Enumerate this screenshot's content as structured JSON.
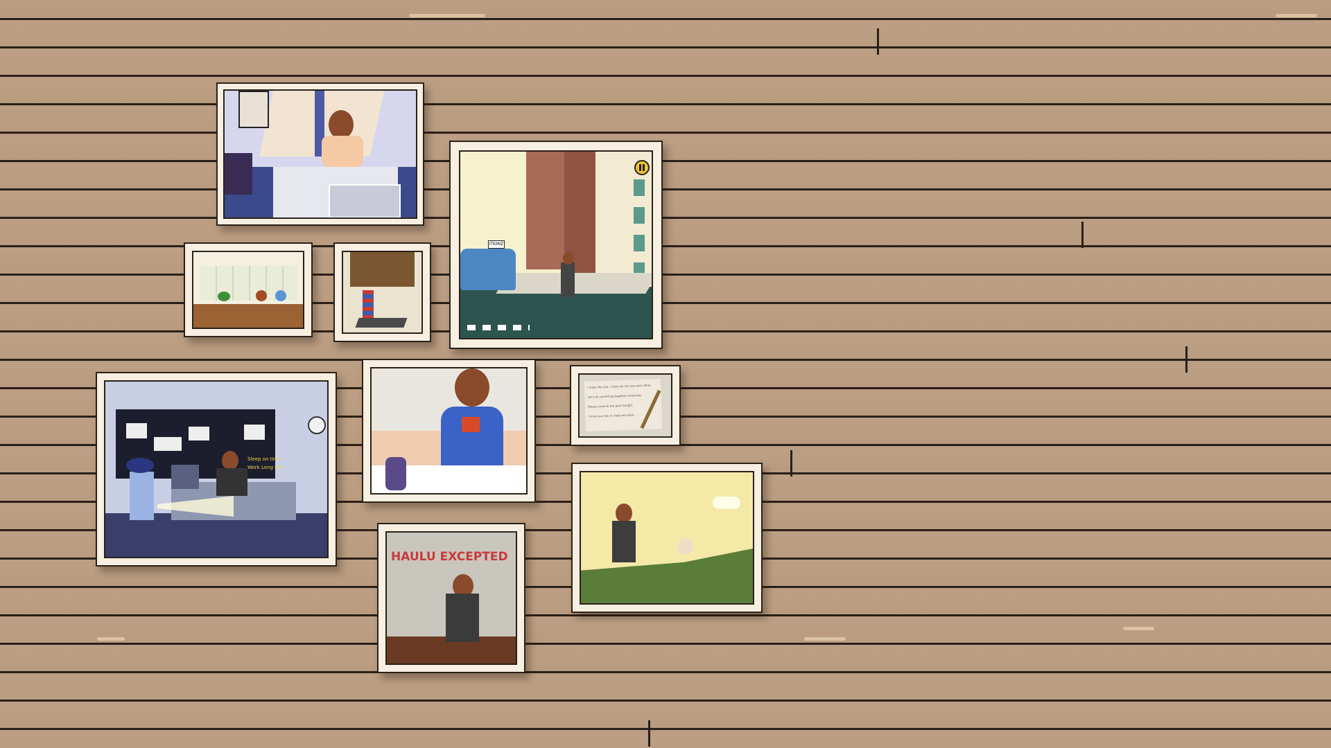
{
  "scene": "memory-wall",
  "frames": {
    "office": {
      "board_line1": "Sleep on time",
      "board_line2": "Work Long Life"
    },
    "graffiti": {
      "wall_text": "HAULU EXCEPTED"
    },
    "taxi": {
      "roof_sign": "ITEMIZ"
    },
    "letter": {
      "lines": [
        "I really like you, I hope we can see each other.",
        "Let's do something together tomorrow.",
        "Please come to the park tonight.",
        "I know you like it, meet me there."
      ]
    }
  },
  "pause_icon_name": "pause-icon",
  "colors": {
    "wall": "#bb9e83",
    "wall_line": "#2a1f17",
    "frame": "#f7efe2",
    "pause_button": "#f2c230"
  }
}
